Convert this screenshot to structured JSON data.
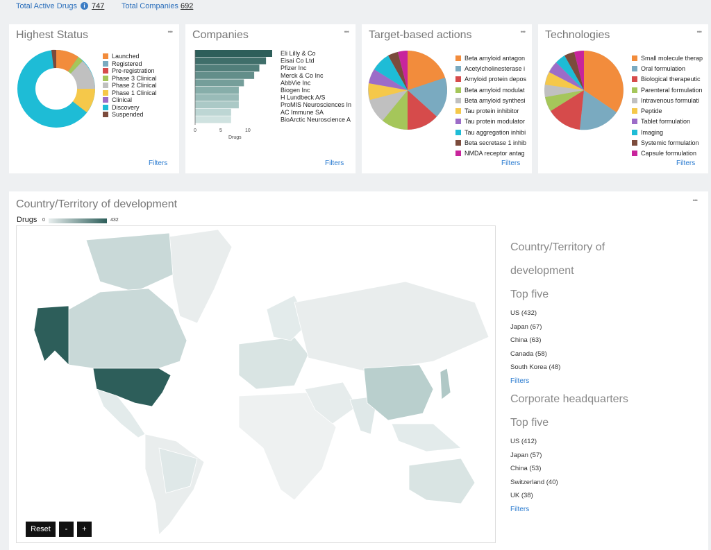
{
  "header": {
    "active_drugs_label": "Total Active Drugs",
    "active_drugs_value": "747",
    "companies_label": "Total Companies",
    "companies_value": "692"
  },
  "menu_glyph": "•••",
  "filters_label": "Filters",
  "highest_status": {
    "title": "Highest Status",
    "legend": [
      {
        "label": "Launched",
        "color": "#f28c3c"
      },
      {
        "label": "Registered",
        "color": "#7aaac0"
      },
      {
        "label": "Pre-registration",
        "color": "#d64b4b"
      },
      {
        "label": "Phase 3 Clinical",
        "color": "#a5c65a"
      },
      {
        "label": "Phase 2 Clinical",
        "color": "#c0c0c0"
      },
      {
        "label": "Phase 1 Clinical",
        "color": "#f5c84a"
      },
      {
        "label": "Clinical",
        "color": "#9c6cc8"
      },
      {
        "label": "Discovery",
        "color": "#1ebcd6"
      },
      {
        "label": "Suspended",
        "color": "#7b4b3c"
      }
    ]
  },
  "companies": {
    "title": "Companies",
    "axis_label": "Drugs",
    "ticks": [
      "0",
      "5",
      "10"
    ],
    "items": [
      {
        "name": "Eli Lilly & Co",
        "value": 15
      },
      {
        "name": "Eisai Co Ltd",
        "value": 13.8
      },
      {
        "name": "Pfizer Inc",
        "value": 12.5
      },
      {
        "name": "Merck & Co Inc",
        "value": 11.5
      },
      {
        "name": "AbbVie Inc",
        "value": 9.5
      },
      {
        "name": "Biogen Inc",
        "value": 8.5
      },
      {
        "name": "H Lundbeck A/S",
        "value": 8.5
      },
      {
        "name": "ProMIS Neurosciences In",
        "value": 8.5
      },
      {
        "name": "AC Immune SA",
        "value": 7
      },
      {
        "name": "BioArctic Neuroscience A",
        "value": 7
      }
    ]
  },
  "target_actions": {
    "title": "Target-based actions",
    "legend": [
      {
        "label": "Beta amyloid antagon",
        "color": "#f28c3c"
      },
      {
        "label": "Acetylcholinesterase i",
        "color": "#7aaac0"
      },
      {
        "label": "Amyloid protein depos",
        "color": "#d64b4b"
      },
      {
        "label": "Beta amyloid modulat",
        "color": "#a5c65a"
      },
      {
        "label": "Beta amyloid synthesi",
        "color": "#c0c0c0"
      },
      {
        "label": "Tau protein inhibitor",
        "color": "#f5c84a"
      },
      {
        "label": "Tau protein modulator",
        "color": "#9c6cc8"
      },
      {
        "label": "Tau aggregation inhibi",
        "color": "#1ebcd6"
      },
      {
        "label": "Beta secretase 1 inhib",
        "color": "#7b4b3c"
      },
      {
        "label": "NMDA receptor antag",
        "color": "#c8249c"
      }
    ]
  },
  "technologies": {
    "title": "Technologies",
    "legend": [
      {
        "label": "Small molecule therap",
        "color": "#f28c3c"
      },
      {
        "label": "Oral formulation",
        "color": "#7aaac0"
      },
      {
        "label": "Biological therapeutic",
        "color": "#d64b4b"
      },
      {
        "label": "Parenteral formulation",
        "color": "#a5c65a"
      },
      {
        "label": "Intravenous formulati",
        "color": "#c0c0c0"
      },
      {
        "label": "Peptide",
        "color": "#f5c84a"
      },
      {
        "label": "Tablet formulation",
        "color": "#9c6cc8"
      },
      {
        "label": "Imaging",
        "color": "#1ebcd6"
      },
      {
        "label": "Systemic formulation",
        "color": "#7b4b3c"
      },
      {
        "label": "Capsule formulation",
        "color": "#c8249c"
      }
    ]
  },
  "map": {
    "title": "Country/Territory of development",
    "legend_label": "Drugs",
    "legend_min": "0",
    "legend_max": "432",
    "reset": "Reset",
    "zoom_out": "-",
    "zoom_in": "+"
  },
  "side": {
    "dev_title_1": "Country/Territory of",
    "dev_title_2": "development",
    "top_five": "Top five",
    "dev_items": [
      "US  (432)",
      "Japan  (67)",
      "China  (63)",
      "Canada  (58)",
      "South Korea  (48)"
    ],
    "hq_title": "Corporate headquarters",
    "hq_items": [
      "US  (412)",
      "Japan  (57)",
      "China  (53)",
      "Switzerland  (40)",
      "UK  (38)"
    ]
  }
}
